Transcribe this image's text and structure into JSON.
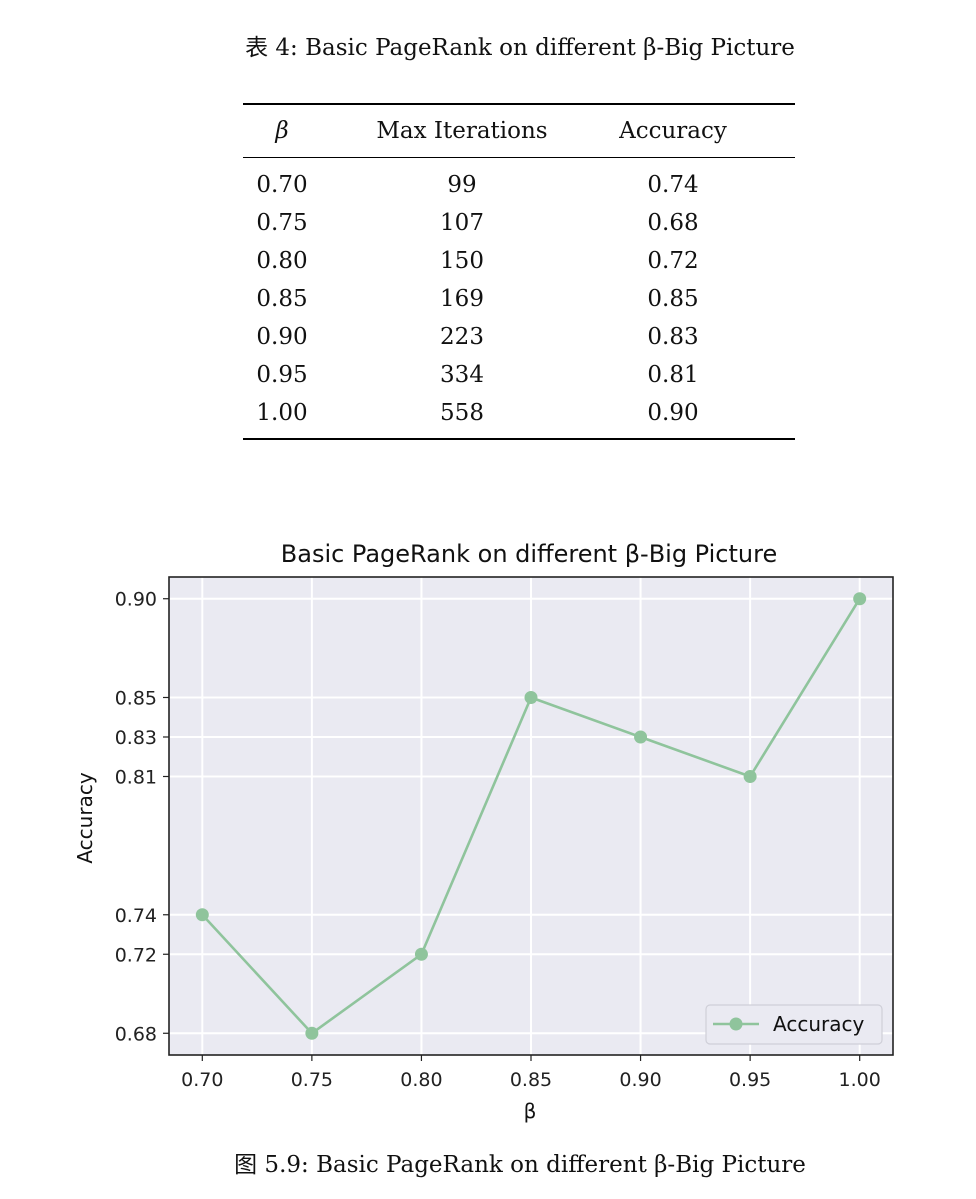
{
  "table": {
    "caption": "表 4: Basic PageRank on different β-Big Picture",
    "headers": [
      "β",
      "Max Iterations",
      "Accuracy"
    ],
    "rows": [
      [
        "0.70",
        "99",
        "0.74"
      ],
      [
        "0.75",
        "107",
        "0.68"
      ],
      [
        "0.80",
        "150",
        "0.72"
      ],
      [
        "0.85",
        "169",
        "0.85"
      ],
      [
        "0.90",
        "223",
        "0.83"
      ],
      [
        "0.95",
        "334",
        "0.81"
      ],
      [
        "1.00",
        "558",
        "0.90"
      ]
    ]
  },
  "chart_data": {
    "type": "line",
    "title": "Basic PageRank on different β-Big Picture",
    "xlabel": "β",
    "ylabel": "Accuracy",
    "x": [
      0.7,
      0.75,
      0.8,
      0.85,
      0.9,
      0.95,
      1.0
    ],
    "xticks": [
      "0.70",
      "0.75",
      "0.80",
      "0.85",
      "0.90",
      "0.95",
      "1.00"
    ],
    "yticks": [
      "0.68",
      "0.72",
      "0.74",
      "0.81",
      "0.83",
      "0.85",
      "0.90"
    ],
    "series": [
      {
        "name": "Accuracy",
        "values": [
          0.74,
          0.68,
          0.72,
          0.85,
          0.83,
          0.81,
          0.9
        ],
        "color": "#8fc49c"
      }
    ],
    "legend": "lower-right",
    "grid": true,
    "background": "#eaeaf2"
  },
  "figure_caption": "图 5.9: Basic PageRank on different β-Big Picture"
}
